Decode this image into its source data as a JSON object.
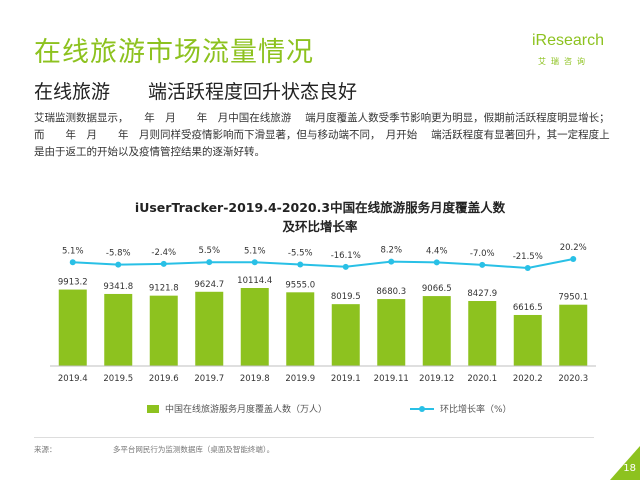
{
  "page": {
    "title": "在线旅游市场流量情况",
    "subtitle": "在线旅游　　端活跃程度回升状态良好",
    "description": "艾瑞监测数据显示，　　年　月　　年　月中国在线旅游　 端月度覆盖人数受季节影响更为明显，假期前活跃程度明显增长；而　　年　月　　年　月则同样受疫情影响而下滑显著，但与移动端不同，　月开始　 端活跃程度有显著回升，其一定程度上是由于返工的开始以及疫情管控结果的逐渐好转。",
    "source_label": "来源：",
    "source_text": "多平台网民行为监测数据库（桌面及智能终端）。",
    "page_number": "18"
  },
  "logo": {
    "brand": "iResearch",
    "cn": "艾瑞咨询"
  },
  "chart_data": {
    "type": "bar",
    "title_line1": "iUserTracker-2019.4-2020.3中国在线旅游服务月度覆盖人数",
    "title_line2": "及环比增长率",
    "categories": [
      "2019.4",
      "2019.5",
      "2019.6",
      "2019.7",
      "2019.8",
      "2019.9",
      "2019.1",
      "2019.11",
      "2019.12",
      "2020.1",
      "2020.2",
      "2020.3"
    ],
    "series": [
      {
        "name": "中国在线旅游服务月度覆盖人数（万人）",
        "kind": "bar",
        "color": "#8dc21f",
        "values": [
          9913.2,
          9341.8,
          9121.8,
          9624.7,
          10114.4,
          9555.0,
          8019.5,
          8680.3,
          9066.5,
          8427.9,
          6616.5,
          7950.1
        ],
        "labels": [
          "9913.2",
          "9341.8",
          "9121.8",
          "9624.7",
          "10114.4",
          "9555.0",
          "8019.5",
          "8680.3",
          "9066.5",
          "8427.9",
          "6616.5",
          "7950.1"
        ]
      },
      {
        "name": "环比增长率（%）",
        "kind": "line",
        "color": "#29c0e6",
        "values": [
          5.1,
          -5.8,
          -2.4,
          5.5,
          5.1,
          -5.5,
          -16.1,
          8.2,
          4.4,
          -7.0,
          -21.5,
          20.2
        ],
        "labels": [
          "5.1%",
          "-5.8%",
          "-2.4%",
          "5.5%",
          "5.1%",
          "-5.5%",
          "-16.1%",
          "8.2%",
          "4.4%",
          "-7.0%",
          "-21.5%",
          "20.2%"
        ]
      }
    ],
    "ylim": [
      0,
      10500
    ],
    "grid": false,
    "legend_position": "bottom"
  }
}
